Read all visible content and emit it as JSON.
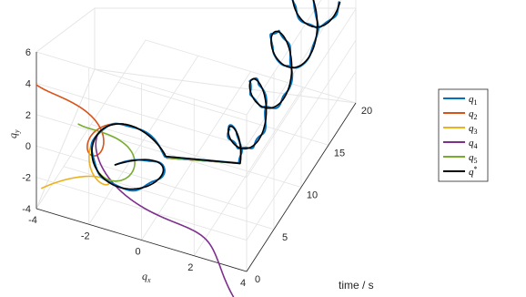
{
  "chart_data": {
    "type": "line",
    "view": "3d",
    "xlabel": "time / s",
    "ylabel": "q_x",
    "zlabel": "q_y",
    "xlim": [
      0,
      20
    ],
    "ylim": [
      -4,
      4
    ],
    "zlim": [
      -4,
      6
    ],
    "xticks": [
      "0",
      "5",
      "10",
      "15",
      "20"
    ],
    "yticks": [
      "-4",
      "-2",
      "0",
      "2",
      "4"
    ],
    "zticks": [
      "-4",
      "-2",
      "0",
      "2",
      "4",
      "6"
    ],
    "grid": true,
    "legend_position": "right",
    "series": [
      {
        "name": "q",
        "sub": "1",
        "color": "#0072BD"
      },
      {
        "name": "q",
        "sub": "2",
        "color": "#D95319"
      },
      {
        "name": "q",
        "sub": "3",
        "color": "#EDB120"
      },
      {
        "name": "q",
        "sub": "4",
        "color": "#7E2F8E"
      },
      {
        "name": "q",
        "sub": "5",
        "color": "#77AC30"
      },
      {
        "name": "q",
        "sup": "*",
        "color": "#000000"
      }
    ]
  }
}
